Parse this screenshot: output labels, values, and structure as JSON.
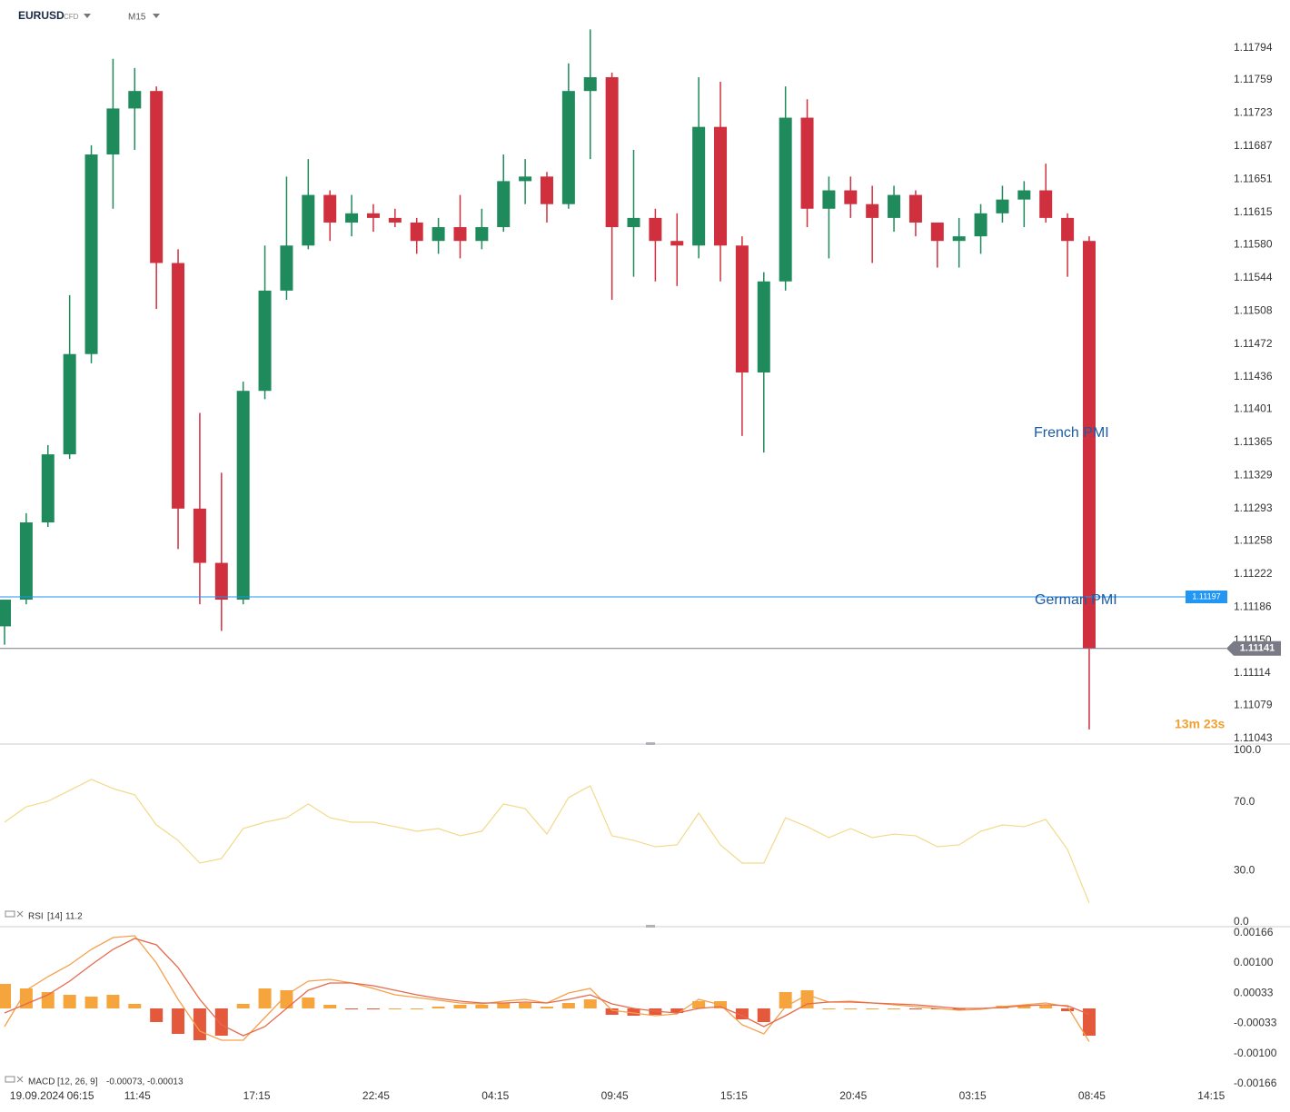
{
  "chart_data": [
    {
      "type": "candlestick",
      "symbol": "EURUSD",
      "instrument": "CFD",
      "timeframe": "M15",
      "up_color": "#1f8a5b",
      "down_color": "#d0303e",
      "grid": true,
      "xlim": [
        -0.84,
        225.3
      ],
      "ylim": [
        1.11038,
        1.11841
      ],
      "xticks": [
        {
          "value": 6,
          "label": "19.09.2024"
        },
        {
          "value": 14,
          "label": "06:15"
        },
        {
          "value": 24.5,
          "label": "11:45"
        },
        {
          "value": 46.5,
          "label": "17:15"
        },
        {
          "value": 68.5,
          "label": "22:45"
        },
        {
          "value": 90.5,
          "label": "04:15"
        },
        {
          "value": 112.5,
          "label": "09:45"
        },
        {
          "value": 134.5,
          "label": "15:15"
        },
        {
          "value": 156.5,
          "label": "20:45"
        },
        {
          "value": 178.5,
          "label": "03:15"
        },
        {
          "value": 200.5,
          "label": "08:45"
        },
        {
          "value": 222.5,
          "label": "14:15"
        }
      ],
      "yticks": [
        1.11794,
        1.11759,
        1.11723,
        1.11687,
        1.11651,
        1.11615,
        {
          "value": 1.1158,
          "label": "1.11580"
        },
        1.11544,
        1.11508,
        1.11472,
        1.11436,
        1.11401,
        1.11365,
        1.11329,
        1.11293,
        1.11258,
        1.11222,
        1.11186,
        {
          "value": 1.1115,
          "label": "1.11150"
        },
        1.11114,
        1.11079,
        1.11043
      ],
      "x": [
        0,
        4,
        8,
        12,
        16,
        20,
        24,
        28,
        32,
        36,
        40,
        44,
        48,
        52,
        56,
        60,
        64,
        68,
        72,
        76,
        80,
        84,
        88,
        92,
        96,
        100,
        104,
        108,
        112,
        116,
        120,
        124,
        128,
        132,
        136,
        140,
        144,
        148,
        152,
        156,
        160,
        164,
        168,
        172,
        176,
        180,
        184,
        188,
        192,
        196,
        200
      ],
      "open": [
        1.11165,
        1.11194,
        1.11278,
        1.11352,
        1.11461,
        1.11678,
        1.11728,
        1.11747,
        1.1156,
        1.11293,
        1.11234,
        1.11194,
        1.11421,
        1.1153,
        1.11579,
        1.11634,
        1.11604,
        1.11614,
        1.11609,
        1.11604,
        1.11584,
        1.11599,
        1.11584,
        1.11599,
        1.11649,
        1.11654,
        1.11624,
        1.11747,
        1.11762,
        1.11599,
        1.11609,
        1.11584,
        1.11579,
        1.11708,
        1.11579,
        1.11441,
        1.1154,
        1.11718,
        1.11619,
        1.11639,
        1.11624,
        1.11609,
        1.11634,
        1.11604,
        1.11584,
        1.11589,
        1.11614,
        1.11629,
        1.11639,
        1.11609,
        1.11584
      ],
      "high": [
        1.11194,
        1.11288,
        1.11362,
        1.11525,
        1.11688,
        1.11782,
        1.11772,
        1.11752,
        1.11575,
        1.11397,
        1.11332,
        1.11431,
        1.11579,
        1.11654,
        1.11673,
        1.11639,
        1.11634,
        1.11624,
        1.11619,
        1.11609,
        1.11609,
        1.11634,
        1.11619,
        1.11678,
        1.11673,
        1.11659,
        1.11777,
        1.11814,
        1.11767,
        1.11683,
        1.11619,
        1.11614,
        1.11762,
        1.11757,
        1.11589,
        1.1155,
        1.11752,
        1.11738,
        1.11654,
        1.11654,
        1.11644,
        1.11644,
        1.11639,
        1.11604,
        1.11609,
        1.11624,
        1.11644,
        1.11649,
        1.11668,
        1.11614,
        1.11589
      ],
      "low": [
        1.11145,
        1.11189,
        1.11273,
        1.11347,
        1.11451,
        1.11619,
        1.11683,
        1.1151,
        1.11249,
        1.11189,
        1.1116,
        1.11189,
        1.11412,
        1.1152,
        1.11575,
        1.11584,
        1.11589,
        1.11594,
        1.11599,
        1.1157,
        1.1157,
        1.11565,
        1.11575,
        1.11594,
        1.11624,
        1.11604,
        1.11619,
        1.11673,
        1.1152,
        1.11545,
        1.1154,
        1.11535,
        1.11565,
        1.1154,
        1.11372,
        1.11354,
        1.1153,
        1.11599,
        1.11565,
        1.11609,
        1.1156,
        1.11594,
        1.11589,
        1.11555,
        1.11555,
        1.1157,
        1.11604,
        1.11599,
        1.11604,
        1.11545,
        1.11053
      ],
      "close": [
        1.11194,
        1.11278,
        1.11352,
        1.11461,
        1.11678,
        1.11728,
        1.11747,
        1.1156,
        1.11293,
        1.11234,
        1.11194,
        1.11421,
        1.1153,
        1.11579,
        1.11634,
        1.11604,
        1.11614,
        1.11609,
        1.11604,
        1.11584,
        1.11599,
        1.11584,
        1.11599,
        1.11649,
        1.11654,
        1.11624,
        1.11747,
        1.11762,
        1.11599,
        1.11609,
        1.11584,
        1.11579,
        1.11708,
        1.11579,
        1.11441,
        1.1154,
        1.11718,
        1.11619,
        1.11639,
        1.11624,
        1.11609,
        1.11634,
        1.11604,
        1.11584,
        1.11589,
        1.11614,
        1.11629,
        1.11639,
        1.11609,
        1.11584,
        1.11141
      ],
      "hlines": [
        {
          "value": 1.11197,
          "color": "#2196f3"
        },
        {
          "value": 1.11141,
          "color": "#787b86"
        }
      ],
      "annotations": [
        "French PMI",
        "German PMI"
      ],
      "annotation_color": "#1a5ba6",
      "countdown": "13m 23s",
      "countdown_color": "#f0a030"
    },
    {
      "type": "line",
      "legend": {
        "name": "RSI",
        "params": "[14]",
        "value": 11.2
      },
      "xlim": [
        -0.84,
        225.3
      ],
      "ylim": [
        0,
        100
      ],
      "grid": true,
      "yticks": [
        {
          "value": 100,
          "label": "100.0"
        },
        {
          "value": 70,
          "label": "70.0"
        },
        {
          "value": 30,
          "label": "30.0"
        },
        {
          "value": 0,
          "label": "0.0"
        }
      ],
      "x": [
        0,
        4,
        8,
        12,
        16,
        20,
        24,
        28,
        32,
        36,
        40,
        44,
        48,
        52,
        56,
        60,
        64,
        68,
        72,
        76,
        80,
        84,
        88,
        92,
        96,
        100,
        104,
        108,
        112,
        116,
        120,
        124,
        128,
        132,
        136,
        140,
        144,
        148,
        152,
        156,
        160,
        164,
        168,
        172,
        176,
        180,
        184,
        188,
        192,
        196,
        200
      ],
      "series": [
        {
          "color": "#f3d98a",
          "values": [
            58.2,
            67.2,
            70.4,
            76.7,
            83.1,
            77.8,
            74.1,
            56.6,
            47.6,
            34.4,
            37.0,
            54.5,
            58.2,
            60.8,
            68.8,
            60.8,
            58.2,
            58.2,
            55.6,
            52.9,
            54.5,
            50.3,
            52.9,
            68.8,
            66.1,
            51.3,
            72.5,
            79.4,
            50.3,
            47.6,
            43.9,
            45.0,
            63.5,
            45.0,
            34.4,
            34.4,
            60.8,
            55.6,
            49.2,
            54.5,
            49.2,
            51.3,
            50.3,
            43.9,
            45.0,
            52.9,
            56.6,
            55.6,
            59.8,
            42.3,
            11.2
          ]
        }
      ]
    },
    {
      "type": "macd",
      "legend": {
        "name": "MACD",
        "params": "[12, 26, 9]",
        "values": "-0.00073, -0.00013"
      },
      "xlim": [
        -0.84,
        225.3
      ],
      "ylim": [
        -0.0018,
        0.00176
      ],
      "grid": true,
      "yticks": [
        0.00166,
        {
          "value": 0.001,
          "label": "0.00100"
        },
        0.00033,
        -0.00033,
        {
          "value": -0.001,
          "label": "-0.00100"
        },
        -0.00166
      ],
      "x": [
        0,
        4,
        8,
        12,
        16,
        20,
        24,
        28,
        32,
        36,
        40,
        44,
        48,
        52,
        56,
        60,
        64,
        68,
        72,
        76,
        80,
        84,
        88,
        92,
        96,
        100,
        104,
        108,
        112,
        116,
        120,
        124,
        128,
        132,
        136,
        140,
        144,
        148,
        152,
        156,
        160,
        164,
        168,
        172,
        176,
        180,
        184,
        188,
        192,
        196,
        200
      ],
      "series": [
        {
          "kind": "bar",
          "color": "#f5a53c",
          "negative_color": "#e4583c",
          "values": [
            0.00054,
            0.00044,
            0.00036,
            0.0003,
            0.00026,
            0.0003,
            0.0001,
            -0.0003,
            -0.00056,
            -0.0007,
            -0.0006,
            0.0001,
            0.00044,
            0.0004,
            0.00024,
            8e-05,
            -2e-05,
            -2e-05,
            0,
            0,
            4e-05,
            8e-05,
            8e-05,
            0.00012,
            0.00012,
            4e-05,
            0.00012,
            0.0002,
            -0.00014,
            -0.00016,
            -0.00014,
            -0.0001,
            0.00016,
            0.00016,
            -0.00024,
            -0.0003,
            0.00036,
            0.0004,
            0,
            0,
            0,
            0,
            -2e-05,
            -2e-05,
            -4e-05,
            0,
            6e-05,
            6e-05,
            6e-05,
            -6e-05,
            -0.0006
          ]
        },
        {
          "kind": "line",
          "color": "#f5a04a",
          "values": [
            -0.0004,
            0.0004,
            0.0007,
            0.00096,
            0.0013,
            0.00156,
            0.0016,
            0.001,
            0.0002,
            -0.0005,
            -0.0007,
            -0.0007,
            -0.0002,
            0.0003,
            0.0006,
            0.00064,
            0.00056,
            0.00044,
            0.0003,
            0.00024,
            0.00018,
            0.00012,
            0.0001,
            0.00016,
            0.0002,
            0.00012,
            0.00034,
            0.00044,
            -4e-05,
            -0.0001,
            -0.00016,
            -0.00012,
            0.0002,
            8e-05,
            -0.00036,
            -0.00056,
            4e-05,
            0.0003,
            0.00014,
            0.00016,
            0.00012,
            8e-05,
            4e-05,
            0,
            -4e-05,
            -2e-05,
            4e-05,
            8e-05,
            0.00012,
            4e-05,
            -0.00073
          ]
        },
        {
          "kind": "line",
          "color": "#e66a4c",
          "values": [
            -0.0001,
            0.0001,
            0.0003,
            0.0006,
            0.00096,
            0.0013,
            0.00154,
            0.0014,
            0.0009,
            0.0002,
            -0.00036,
            -0.0006,
            -0.0004,
            0,
            0.0004,
            0.00056,
            0.00056,
            0.0005,
            0.0004,
            0.0003,
            0.00022,
            0.00016,
            0.00012,
            0.00012,
            0.00014,
            0.00012,
            0.0002,
            0.0003,
            0.0001,
            0,
            -6e-05,
            -0.0001,
            0,
            4e-05,
            -0.00016,
            -0.0004,
            -0.00016,
            0.0001,
            0.00014,
            0.00014,
            0.00012,
            0.0001,
            8e-05,
            4e-05,
            0,
            0,
            2e-05,
            6e-05,
            8e-05,
            6e-05,
            -0.00013
          ]
        }
      ]
    }
  ]
}
